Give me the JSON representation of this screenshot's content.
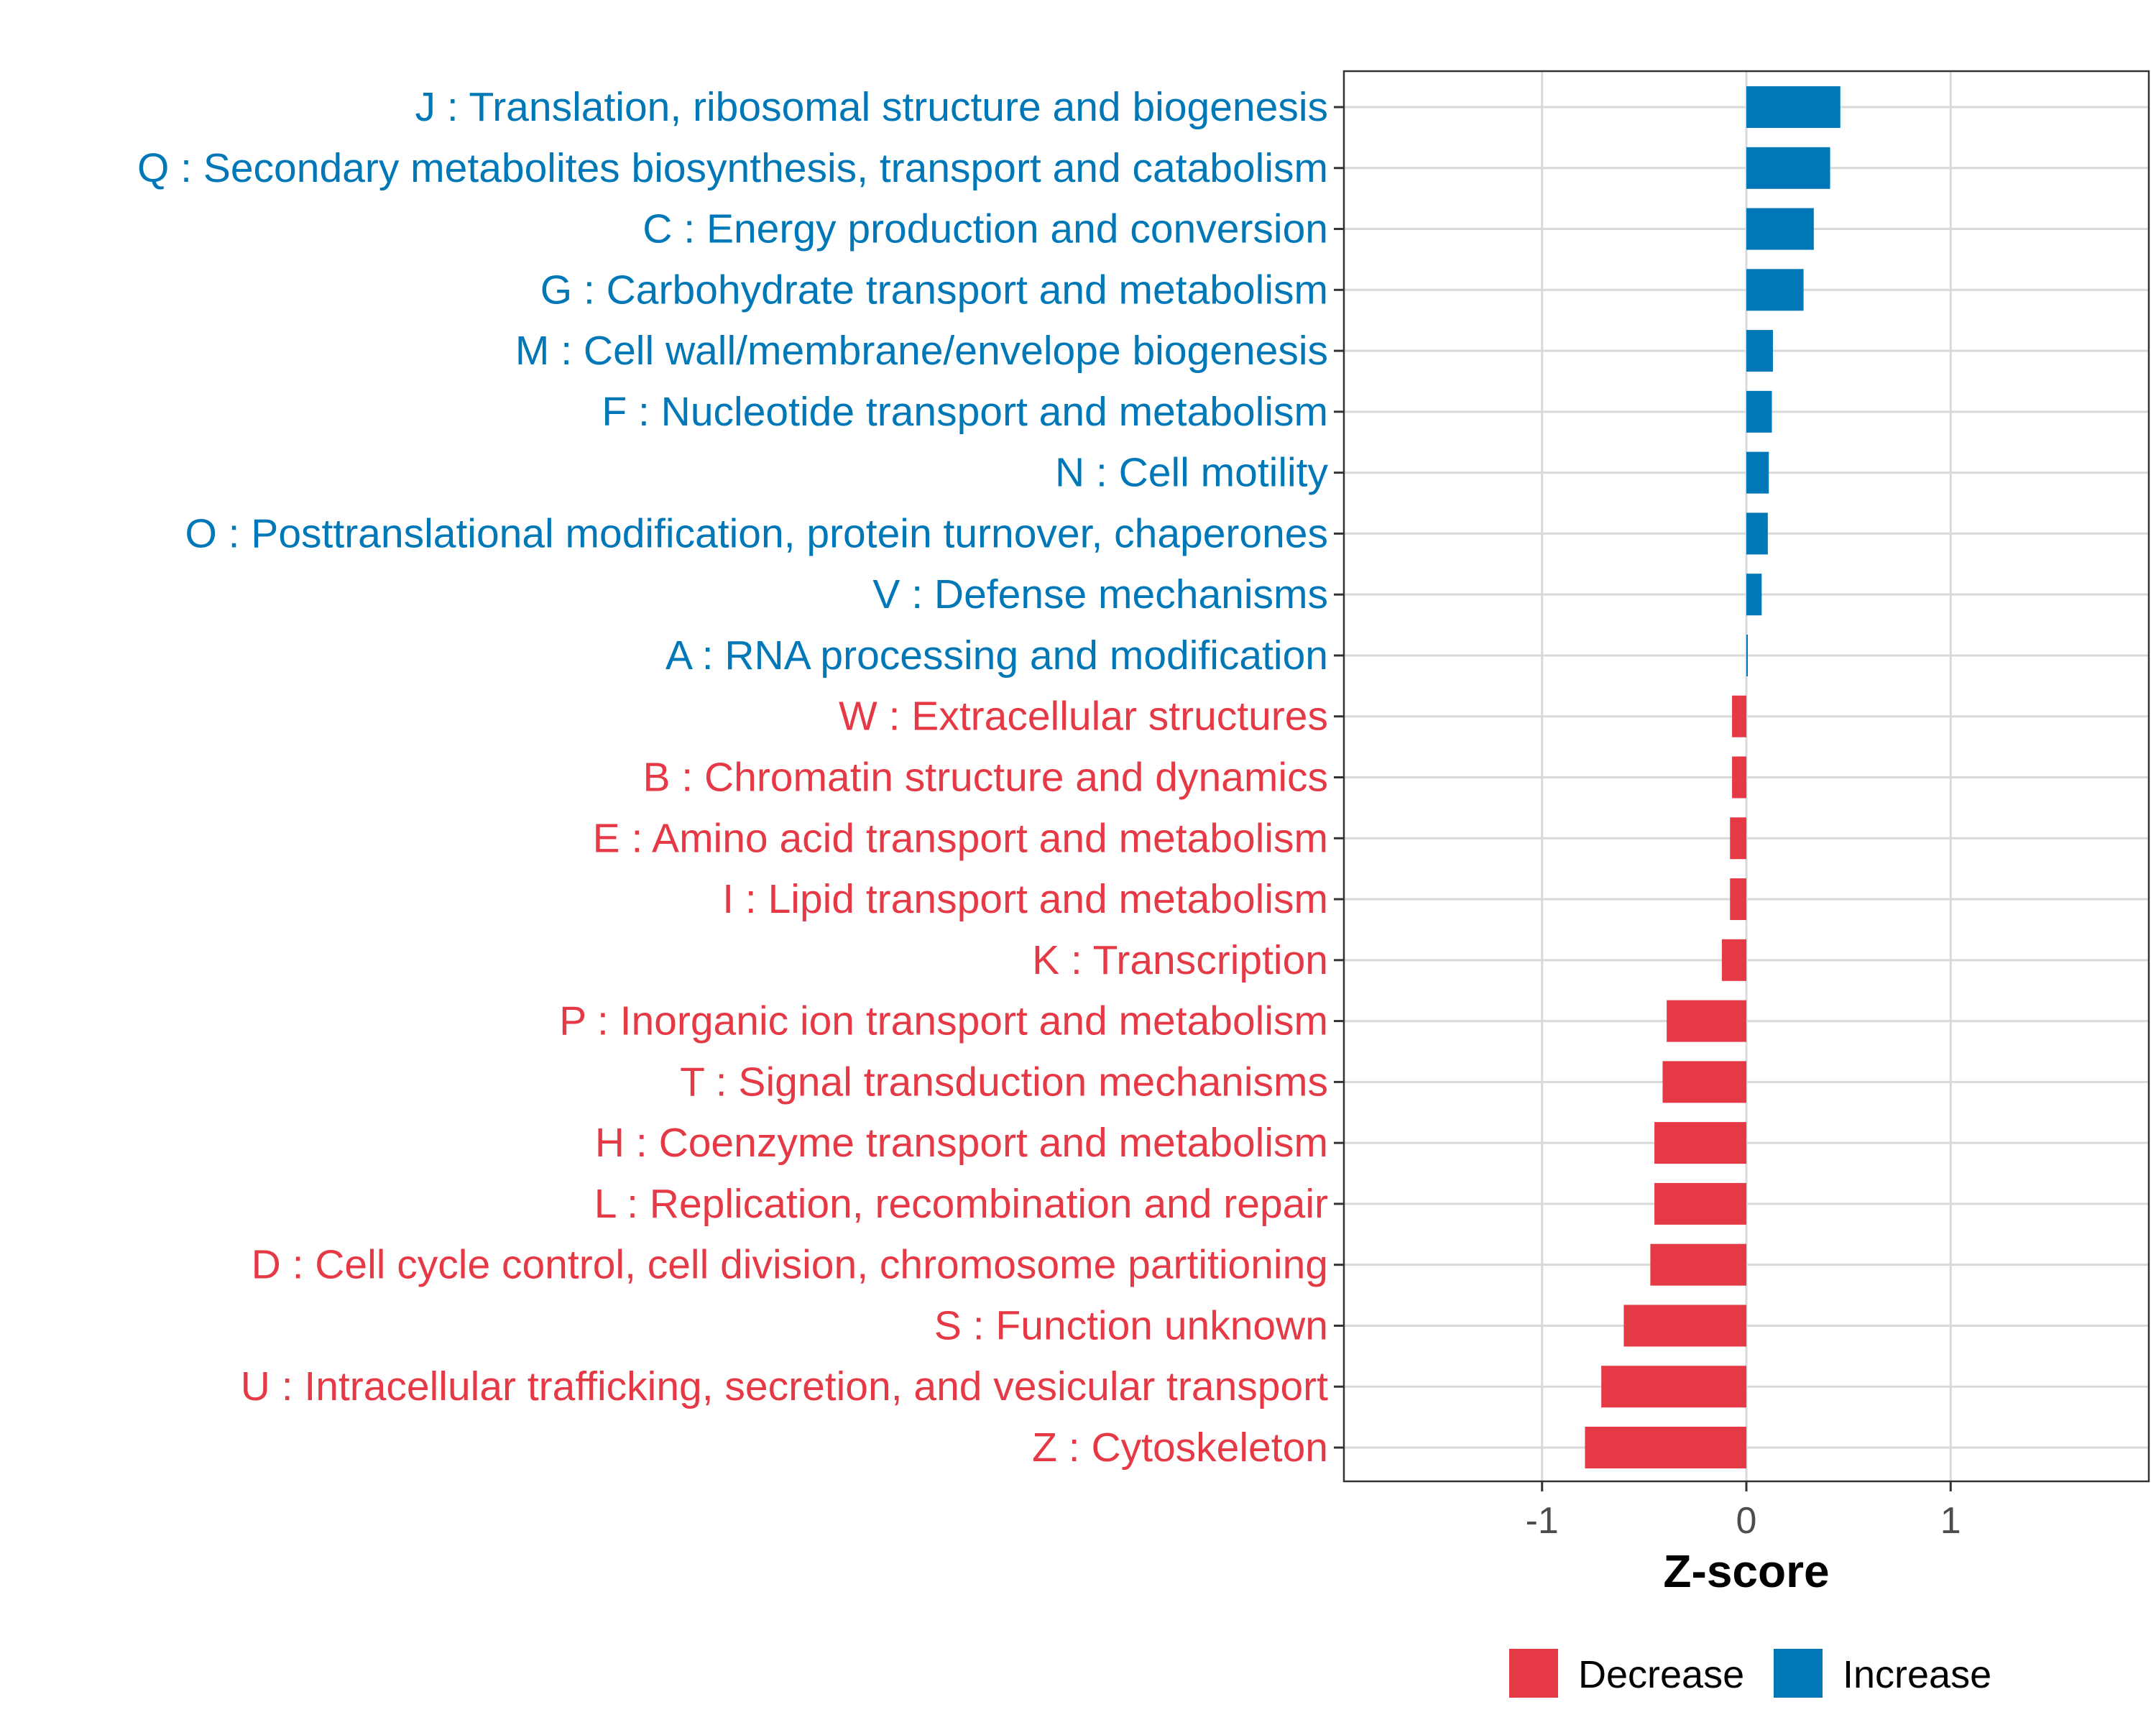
{
  "chart_data": {
    "type": "bar",
    "orientation": "horizontal",
    "xlabel": "Z-score",
    "ylabel": "",
    "xlim": [
      -1.97,
      1.97
    ],
    "xticks": [
      -1,
      0,
      1
    ],
    "xtick_labels": [
      "-1",
      "0",
      "1"
    ],
    "grid": true,
    "legend_position": "bottom",
    "colors": {
      "Decrease": "#e63946",
      "Increase": "#0077b6"
    },
    "legend": [
      {
        "name": "Decrease",
        "color": "#e63946"
      },
      {
        "name": "Increase",
        "color": "#0077b6"
      }
    ],
    "categories": [
      {
        "label": "J : Translation, ribosomal structure and biogenesis",
        "value": 0.46,
        "group": "Increase"
      },
      {
        "label": "Q : Secondary metabolites biosynthesis, transport and catabolism",
        "value": 0.41,
        "group": "Increase"
      },
      {
        "label": "C : Energy production and conversion",
        "value": 0.33,
        "group": "Increase"
      },
      {
        "label": "G : Carbohydrate transport and metabolism",
        "value": 0.28,
        "group": "Increase"
      },
      {
        "label": "M : Cell wall/membrane/envelope biogenesis",
        "value": 0.13,
        "group": "Increase"
      },
      {
        "label": "F : Nucleotide transport and metabolism",
        "value": 0.125,
        "group": "Increase"
      },
      {
        "label": "N : Cell motility",
        "value": 0.11,
        "group": "Increase"
      },
      {
        "label": "O : Posttranslational modification, protein turnover, chaperones",
        "value": 0.105,
        "group": "Increase"
      },
      {
        "label": "V : Defense mechanisms",
        "value": 0.075,
        "group": "Increase"
      },
      {
        "label": "A : RNA processing and modification",
        "value": 0.005,
        "group": "Increase"
      },
      {
        "label": "W : Extracellular structures",
        "value": -0.07,
        "group": "Decrease"
      },
      {
        "label": "B : Chromatin structure and dynamics",
        "value": -0.07,
        "group": "Decrease"
      },
      {
        "label": "E : Amino acid transport and metabolism",
        "value": -0.08,
        "group": "Decrease"
      },
      {
        "label": "I : Lipid transport and metabolism",
        "value": -0.08,
        "group": "Decrease"
      },
      {
        "label": "K : Transcription",
        "value": -0.12,
        "group": "Decrease"
      },
      {
        "label": "P : Inorganic ion transport and metabolism",
        "value": -0.39,
        "group": "Decrease"
      },
      {
        "label": "T : Signal transduction mechanisms",
        "value": -0.41,
        "group": "Decrease"
      },
      {
        "label": "H : Coenzyme transport and metabolism",
        "value": -0.45,
        "group": "Decrease"
      },
      {
        "label": "L : Replication, recombination and repair",
        "value": -0.45,
        "group": "Decrease"
      },
      {
        "label": "D : Cell cycle control, cell division, chromosome partitioning",
        "value": -0.47,
        "group": "Decrease"
      },
      {
        "label": "S : Function unknown",
        "value": -0.6,
        "group": "Decrease"
      },
      {
        "label": "U : Intracellular trafficking, secretion, and vesicular transport",
        "value": -0.71,
        "group": "Decrease"
      },
      {
        "label": "Z : Cytoskeleton",
        "value": -0.79,
        "group": "Decrease"
      }
    ]
  }
}
